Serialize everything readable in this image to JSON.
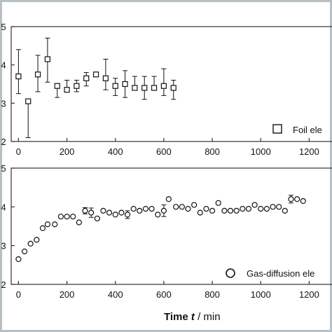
{
  "chart_data": [
    {
      "type": "scatter",
      "xlim": [
        -30,
        1300
      ],
      "ylim": [
        2,
        5
      ],
      "x_ticks": [
        0,
        200,
        400,
        600,
        800,
        1000,
        1200
      ],
      "x_tick_labels": [
        "0",
        "200",
        "400",
        "600",
        "800",
        "1000",
        "1200"
      ],
      "y_ticks": [
        2,
        3,
        4,
        5
      ],
      "y_tick_labels": [
        "2",
        "3",
        "4",
        "5"
      ],
      "marker": "square",
      "grid": false,
      "legend_position": "bottom-right",
      "series": [
        {
          "name": "Foil ele",
          "points": [
            {
              "x": 0,
              "y": 3.7,
              "lo": 3.25,
              "hi": 4.4
            },
            {
              "x": 40,
              "y": 3.05,
              "lo": 2.1,
              "hi": 3.05
            },
            {
              "x": 80,
              "y": 3.75,
              "lo": 3.3,
              "hi": 4.25
            },
            {
              "x": 120,
              "y": 4.15,
              "lo": 3.55,
              "hi": 4.7
            },
            {
              "x": 160,
              "y": 3.45,
              "lo": 3.15,
              "hi": 3.45
            },
            {
              "x": 200,
              "y": 3.35,
              "lo": 3.35,
              "hi": 3.6
            },
            {
              "x": 240,
              "y": 3.45,
              "lo": 3.3,
              "hi": 3.6
            },
            {
              "x": 280,
              "y": 3.65,
              "lo": 3.45,
              "hi": 3.8
            },
            {
              "x": 320,
              "y": 3.75,
              "lo": 3.75,
              "hi": 3.75
            },
            {
              "x": 360,
              "y": 3.65,
              "lo": 3.35,
              "hi": 4.15
            },
            {
              "x": 400,
              "y": 3.45,
              "lo": 3.2,
              "hi": 3.65
            },
            {
              "x": 440,
              "y": 3.5,
              "lo": 3.15,
              "hi": 3.85
            },
            {
              "x": 480,
              "y": 3.4,
              "lo": 3.4,
              "hi": 3.7
            },
            {
              "x": 520,
              "y": 3.4,
              "lo": 3.1,
              "hi": 3.7
            },
            {
              "x": 560,
              "y": 3.4,
              "lo": 3.4,
              "hi": 3.7
            },
            {
              "x": 600,
              "y": 3.45,
              "lo": 3.2,
              "hi": 3.9
            },
            {
              "x": 640,
              "y": 3.4,
              "lo": 3.1,
              "hi": 3.6
            }
          ]
        }
      ]
    },
    {
      "type": "scatter",
      "xlim": [
        -30,
        1300
      ],
      "ylim": [
        2,
        5
      ],
      "x_ticks": [
        0,
        200,
        400,
        600,
        800,
        1000,
        1200
      ],
      "x_tick_labels": [
        "0",
        "200",
        "400",
        "600",
        "800",
        "1000",
        "1200"
      ],
      "y_ticks": [
        2,
        3,
        4,
        5
      ],
      "y_tick_labels": [
        "2",
        "3",
        "4",
        "5"
      ],
      "xlabel_main": "Time ",
      "xlabel_var": "t",
      "xlabel_unit": " / min",
      "marker": "circle",
      "grid": false,
      "legend_position": "bottom-right",
      "series": [
        {
          "name": "Gas-diffusion ele",
          "points": [
            {
              "x": 0,
              "y": 2.65
            },
            {
              "x": 25,
              "y": 2.85
            },
            {
              "x": 50,
              "y": 3.05
            },
            {
              "x": 75,
              "y": 3.15
            },
            {
              "x": 100,
              "y": 3.45
            },
            {
              "x": 120,
              "y": 3.55
            },
            {
              "x": 150,
              "y": 3.55
            },
            {
              "x": 175,
              "y": 3.75
            },
            {
              "x": 200,
              "y": 3.75
            },
            {
              "x": 225,
              "y": 3.75
            },
            {
              "x": 250,
              "y": 3.6
            },
            {
              "x": 275,
              "y": 3.9,
              "err": 0.08
            },
            {
              "x": 300,
              "y": 3.85,
              "err": 0.12
            },
            {
              "x": 325,
              "y": 3.7
            },
            {
              "x": 350,
              "y": 3.9
            },
            {
              "x": 375,
              "y": 3.85
            },
            {
              "x": 400,
              "y": 3.8
            },
            {
              "x": 425,
              "y": 3.85
            },
            {
              "x": 450,
              "y": 3.8,
              "err": 0.1
            },
            {
              "x": 475,
              "y": 3.95
            },
            {
              "x": 500,
              "y": 3.9
            },
            {
              "x": 525,
              "y": 3.95
            },
            {
              "x": 550,
              "y": 3.95
            },
            {
              "x": 575,
              "y": 3.8
            },
            {
              "x": 600,
              "y": 3.9,
              "err": 0.15
            },
            {
              "x": 620,
              "y": 4.2
            },
            {
              "x": 650,
              "y": 4.0
            },
            {
              "x": 675,
              "y": 4.0
            },
            {
              "x": 700,
              "y": 3.95
            },
            {
              "x": 725,
              "y": 4.05
            },
            {
              "x": 750,
              "y": 3.85
            },
            {
              "x": 775,
              "y": 3.95
            },
            {
              "x": 800,
              "y": 3.9
            },
            {
              "x": 825,
              "y": 4.1
            },
            {
              "x": 850,
              "y": 3.9
            },
            {
              "x": 875,
              "y": 3.9
            },
            {
              "x": 900,
              "y": 3.9
            },
            {
              "x": 925,
              "y": 3.95
            },
            {
              "x": 950,
              "y": 3.95
            },
            {
              "x": 975,
              "y": 4.05
            },
            {
              "x": 1000,
              "y": 3.95
            },
            {
              "x": 1025,
              "y": 3.95
            },
            {
              "x": 1050,
              "y": 4.0
            },
            {
              "x": 1075,
              "y": 4.0
            },
            {
              "x": 1100,
              "y": 3.9
            },
            {
              "x": 1125,
              "y": 4.2,
              "err": 0.1
            },
            {
              "x": 1150,
              "y": 4.2
            },
            {
              "x": 1175,
              "y": 4.15
            }
          ]
        }
      ]
    }
  ]
}
